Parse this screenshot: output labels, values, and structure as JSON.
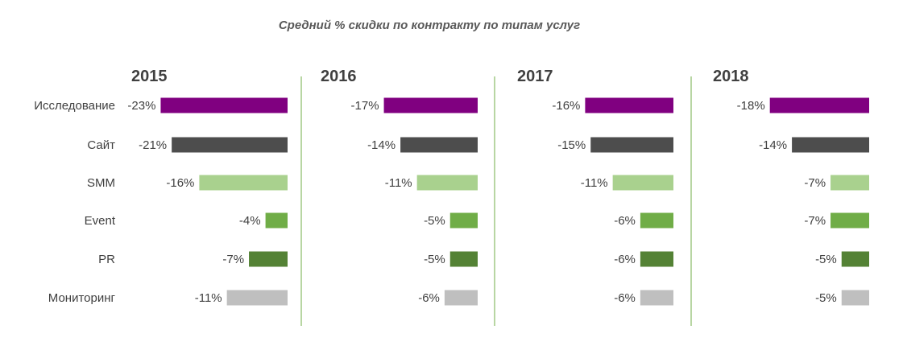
{
  "chart_data": {
    "type": "bar",
    "title": "Средний % скидки по контракту по типам услуг",
    "categories": [
      "Исследование",
      "Сайт",
      "SMM",
      "Event",
      "PR",
      "Мониторинг"
    ],
    "colors": [
      "#800080",
      "#4d4d4d",
      "#a9d18e",
      "#70ad47",
      "#548235",
      "#bfbfbf"
    ],
    "divider_color": "#70ad47",
    "panels": [
      {
        "year": "2015",
        "values": [
          -23,
          -21,
          -16,
          -4,
          -7,
          -11
        ],
        "labels": [
          "-23%",
          "-21%",
          "-16%",
          "-4%",
          "-7%",
          "-11%"
        ]
      },
      {
        "year": "2016",
        "values": [
          -17,
          -14,
          -11,
          -5,
          -5,
          -6
        ],
        "labels": [
          "-17%",
          "-14%",
          "-11%",
          "-5%",
          "-5%",
          "-6%"
        ]
      },
      {
        "year": "2017",
        "values": [
          -16,
          -15,
          -11,
          -6,
          -6,
          -6
        ],
        "labels": [
          "-16%",
          "-15%",
          "-11%",
          "-6%",
          "-6%",
          "-6%"
        ]
      },
      {
        "year": "2018",
        "values": [
          -18,
          -14,
          -7,
          -7,
          -5,
          -5
        ],
        "labels": [
          "-18%",
          "-14%",
          "-7%",
          "-7%",
          "-5%",
          "-5%"
        ]
      }
    ]
  }
}
